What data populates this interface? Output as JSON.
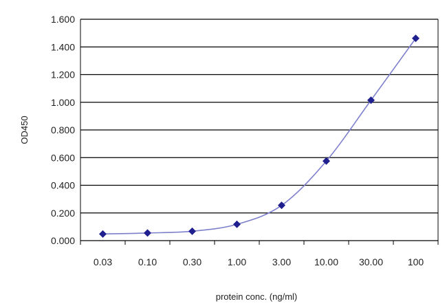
{
  "chart_data": {
    "type": "line",
    "xlabel": "protein conc. (ng/ml)",
    "ylabel": "OD450",
    "categories": [
      "0.03",
      "0.10",
      "0.30",
      "1.00",
      "3.00",
      "10.00",
      "30.00",
      "100"
    ],
    "series": [
      {
        "values": [
          0.048,
          0.055,
          0.068,
          0.118,
          0.255,
          0.575,
          1.015,
          1.462
        ]
      }
    ],
    "ylim": [
      0,
      1.6
    ],
    "yticks": [
      "0.000",
      "0.200",
      "0.400",
      "0.600",
      "0.800",
      "1.000",
      "1.200",
      "1.400",
      "1.600"
    ],
    "grid": true,
    "legend": "none",
    "colors": {
      "series": "#1f1f8f",
      "fit_line": "#7d7fcc",
      "grid": "#000000"
    }
  }
}
